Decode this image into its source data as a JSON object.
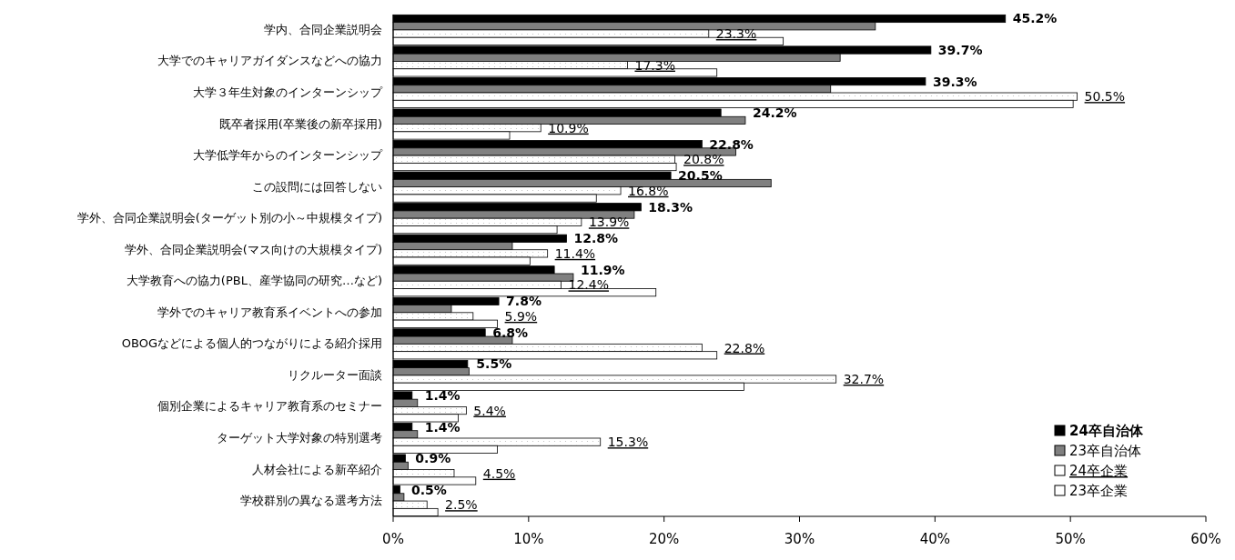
{
  "chart_data": {
    "type": "bar",
    "orientation": "horizontal",
    "categories": [
      "学内、合同企業説明会",
      "大学でのキャリアガイダンスなどへの協力",
      "大学３年生対象のインターンシップ",
      "既卒者採用(卒業後の新卒採用)",
      "大学低学年からのインターンシップ",
      "この設問には回答しない",
      "学外、合同企業説明会(ターゲット別の小～中規模タイプ)",
      "学外、合同企業説明会(マス向けの大規模タイプ)",
      "大学教育への協力(PBL、産学協同の研究…など)",
      "学外でのキャリア教育系イベントへの参加",
      "OBOGなどによる個人的つながりによる紹介採用",
      "リクルーター面談",
      "個別企業によるキャリア教育系のセミナー",
      "ターゲット大学対象の特別選考",
      "人材会社による新卒紹介",
      "学校群別の異なる選考方法"
    ],
    "series": [
      {
        "name": "24卒自治体",
        "color": "#000000",
        "values": [
          45.2,
          39.7,
          39.3,
          24.2,
          22.8,
          20.5,
          18.3,
          12.8,
          11.9,
          7.8,
          6.8,
          5.5,
          1.4,
          1.4,
          0.9,
          0.5
        ],
        "value_labels": [
          "45.2%",
          "39.7%",
          "39.3%",
          "24.2%",
          "22.8%",
          "20.5%",
          "18.3%",
          "12.8%",
          "11.9%",
          "7.8%",
          "6.8%",
          "5.5%",
          "1.4%",
          "1.4%",
          "0.9%",
          "0.5%"
        ]
      },
      {
        "name": "23卒自治体",
        "color": "#808080",
        "values": [
          35.6,
          33.0,
          32.3,
          26.0,
          25.3,
          27.9,
          17.8,
          8.8,
          13.3,
          4.3,
          8.8,
          5.6,
          1.8,
          1.8,
          1.1,
          0.8
        ]
      },
      {
        "name": "24卒企業",
        "color": "#ffffff",
        "values": [
          23.3,
          17.3,
          50.5,
          10.9,
          20.8,
          16.8,
          13.9,
          11.4,
          12.4,
          5.9,
          22.8,
          32.7,
          5.4,
          15.3,
          4.5,
          2.5
        ],
        "value_labels": [
          "23.3%",
          "17.3%",
          "50.5%",
          "10.9%",
          "20.8%",
          "16.8%",
          "13.9%",
          "11.4%",
          "12.4%",
          "5.9%",
          "22.8%",
          "32.7%",
          "5.4%",
          "15.3%",
          "4.5%",
          "2.5%"
        ]
      },
      {
        "name": "23卒企業",
        "color": "#ffffff",
        "values": [
          28.8,
          23.9,
          50.2,
          8.6,
          20.9,
          15.0,
          12.1,
          10.1,
          19.4,
          7.7,
          23.9,
          25.9,
          4.8,
          7.7,
          6.1,
          3.3
        ]
      }
    ],
    "xlim": [
      0,
      60
    ],
    "xticks": [
      {
        "value": 0,
        "label": "0%"
      },
      {
        "value": 10,
        "label": "10%"
      },
      {
        "value": 20,
        "label": "20%"
      },
      {
        "value": 30,
        "label": "30%"
      },
      {
        "value": 40,
        "label": "40%"
      },
      {
        "value": 50,
        "label": "50%"
      },
      {
        "value": 60,
        "label": "60%"
      }
    ],
    "grid": false,
    "legend": "bottom right"
  }
}
